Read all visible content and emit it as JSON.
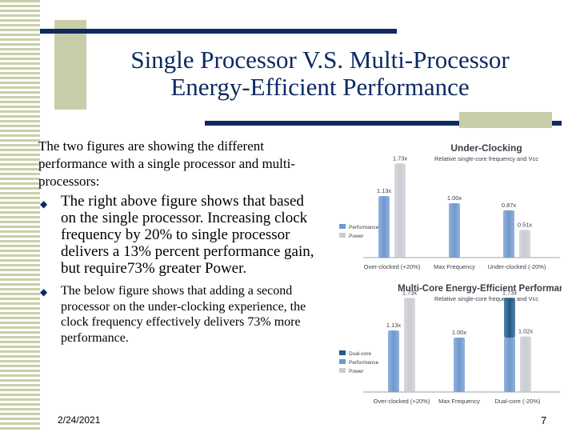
{
  "slide": {
    "title_line1": "Single Processor V.S. Multi-Processor",
    "title_line2": "Energy-Efficient Performance",
    "intro": "The two figures are showing the different performance with a single processor and multi-processors:",
    "bullets": [
      "The right above figure shows that based on the single processor. Increasing clock frequency by 20% to single processor delivers a 13% percent performance gain, but require73% greater Power.",
      "The below figure shows that adding a second processor on the under-clocking experience, the clock frequency effectively delivers 73% more performance."
    ],
    "date": "2/24/2021",
    "page_number": "7"
  },
  "colors": {
    "navy": "#0d2a63",
    "olive_stripe": "#c8cfa8",
    "performance": "#6f98cf",
    "power": "#c9ccd2",
    "dual_core": "#1f5a8c"
  },
  "chart_data": [
    {
      "type": "bar",
      "title": "Under-Clocking",
      "subtitle": "Relative single-core frequency and Vcc",
      "categories": [
        "Over-clocked (+20%)",
        "Max Frequency",
        "Under-clocked (-20%)"
      ],
      "series": [
        {
          "name": "Performance",
          "values": [
            1.13,
            1.0,
            0.87
          ]
        },
        {
          "name": "Power",
          "values": [
            1.73,
            null,
            0.51
          ]
        }
      ],
      "data_labels": [
        [
          "1.13x",
          "1.00x",
          "0.87x"
        ],
        [
          "1.73x",
          "",
          "0.51x"
        ]
      ],
      "legend": [
        "Performance",
        "Power"
      ],
      "legend_position": "left",
      "ylim": [
        0,
        1.9
      ]
    },
    {
      "type": "bar",
      "title": "Multi-Core Energy-Efficient Performance",
      "subtitle": "Relative single-core frequency and Vcc",
      "categories": [
        "Over-clocked (+20%)",
        "Max Frequency",
        "Dual-core (-20%)"
      ],
      "series": [
        {
          "name": "Performance",
          "values": [
            1.13,
            1.0,
            1.73
          ]
        },
        {
          "name": "Power",
          "values": [
            1.73,
            null,
            1.02
          ]
        }
      ],
      "data_labels": [
        [
          "1.13x",
          "1.00x",
          "1.73x"
        ],
        [
          "1.73x",
          "",
          "1.02x"
        ]
      ],
      "legend": [
        "Dual-core",
        "Performance",
        "Power"
      ],
      "legend_position": "left",
      "ylim": [
        0,
        1.9
      ]
    }
  ]
}
